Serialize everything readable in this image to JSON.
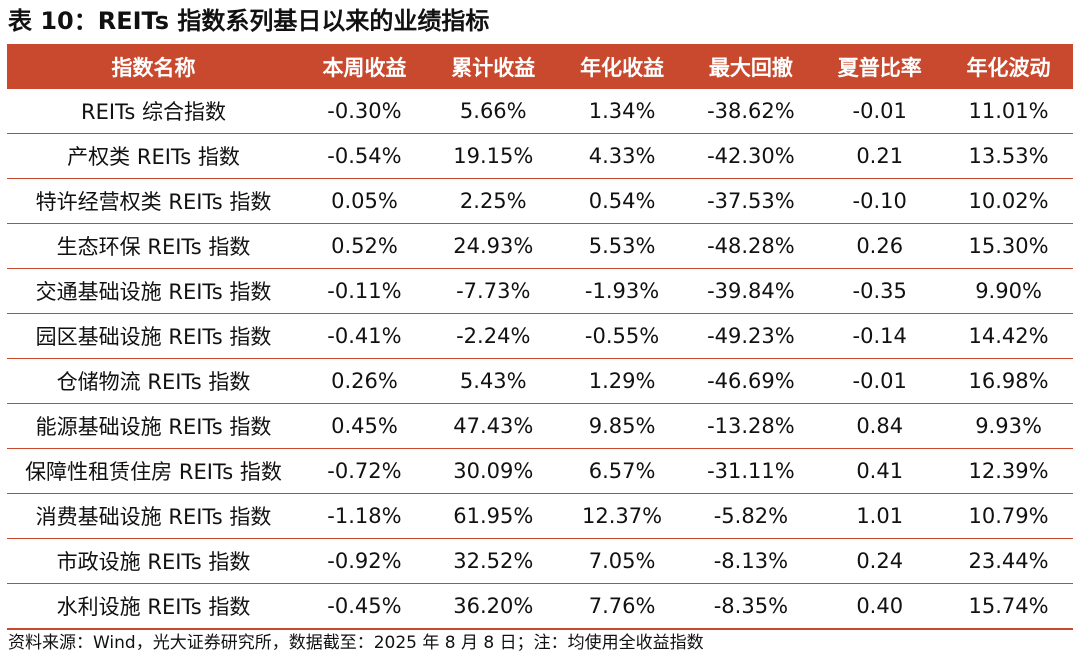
{
  "title": "表 10：REITs 指数系列基日以来的业绩指标",
  "table": {
    "headers": [
      "指数名称",
      "本周收益",
      "累计收益",
      "年化收益",
      "最大回撤",
      "夏普比率",
      "年化波动"
    ],
    "rows": [
      [
        "REITs 综合指数",
        "-0.30%",
        "5.66%",
        "1.34%",
        "-38.62%",
        "-0.01",
        "11.01%"
      ],
      [
        "产权类 REITs 指数",
        "-0.54%",
        "19.15%",
        "4.33%",
        "-42.30%",
        "0.21",
        "13.53%"
      ],
      [
        "特许经营权类 REITs 指数",
        "0.05%",
        "2.25%",
        "0.54%",
        "-37.53%",
        "-0.10",
        "10.02%"
      ],
      [
        "生态环保 REITs 指数",
        "0.52%",
        "24.93%",
        "5.53%",
        "-48.28%",
        "0.26",
        "15.30%"
      ],
      [
        "交通基础设施 REITs 指数",
        "-0.11%",
        "-7.73%",
        "-1.93%",
        "-39.84%",
        "-0.35",
        "9.90%"
      ],
      [
        "园区基础设施 REITs 指数",
        "-0.41%",
        "-2.24%",
        "-0.55%",
        "-49.23%",
        "-0.14",
        "14.42%"
      ],
      [
        "仓储物流 REITs 指数",
        "0.26%",
        "5.43%",
        "1.29%",
        "-46.69%",
        "-0.01",
        "16.98%"
      ],
      [
        "能源基础设施 REITs 指数",
        "0.45%",
        "47.43%",
        "9.85%",
        "-13.28%",
        "0.84",
        "9.93%"
      ],
      [
        "保障性租赁住房 REITs 指数",
        "-0.72%",
        "30.09%",
        "6.57%",
        "-31.11%",
        "0.41",
        "12.39%"
      ],
      [
        "消费基础设施 REITs 指数",
        "-1.18%",
        "61.95%",
        "12.37%",
        "-5.82%",
        "1.01",
        "10.79%"
      ],
      [
        "市政设施 REITs 指数",
        "-0.92%",
        "32.52%",
        "7.05%",
        "-8.13%",
        "0.24",
        "23.44%"
      ],
      [
        "水利设施 REITs 指数",
        "-0.45%",
        "36.20%",
        "7.76%",
        "-8.35%",
        "0.40",
        "15.74%"
      ]
    ]
  },
  "footer": "资料来源：Wind，光大证券研究所，数据截至：2025 年 8 月 8 日；注：均使用全收益指数",
  "colors": {
    "header_bg": "#c9492e",
    "header_text": "#ffffff",
    "row_divider": "#c9492e"
  }
}
